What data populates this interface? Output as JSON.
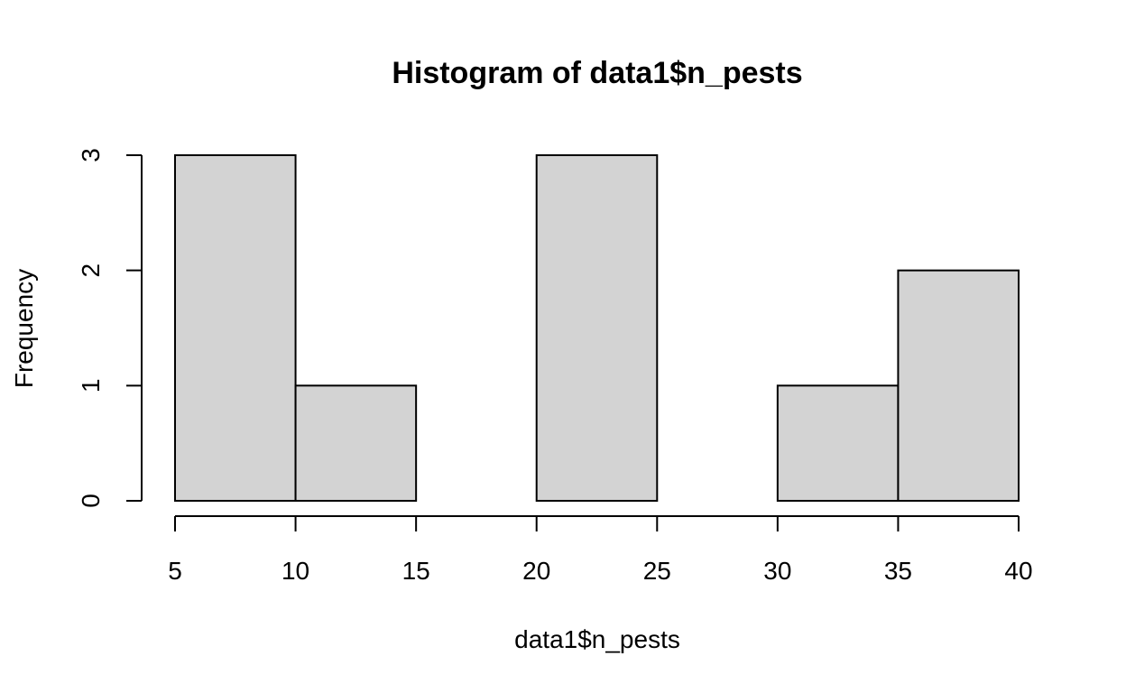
{
  "chart_data": {
    "type": "bar",
    "title": "Histogram of data1$n_pests",
    "xlabel": "data1$n_pests",
    "ylabel": "Frequency",
    "bins": [
      {
        "from": 5,
        "to": 10,
        "count": 3
      },
      {
        "from": 10,
        "to": 15,
        "count": 1
      },
      {
        "from": 15,
        "to": 20,
        "count": 0
      },
      {
        "from": 20,
        "to": 25,
        "count": 3
      },
      {
        "from": 25,
        "to": 30,
        "count": 0
      },
      {
        "from": 30,
        "to": 35,
        "count": 1
      },
      {
        "from": 35,
        "to": 40,
        "count": 2
      }
    ],
    "x_ticks": [
      "5",
      "10",
      "15",
      "20",
      "25",
      "30",
      "35",
      "40"
    ],
    "y_ticks": [
      "0",
      "1",
      "2",
      "3"
    ],
    "xlim": [
      5,
      40
    ],
    "ylim": [
      0,
      3
    ],
    "grid": false,
    "bar_color": "#d3d3d3",
    "edge_color": "#000000"
  }
}
